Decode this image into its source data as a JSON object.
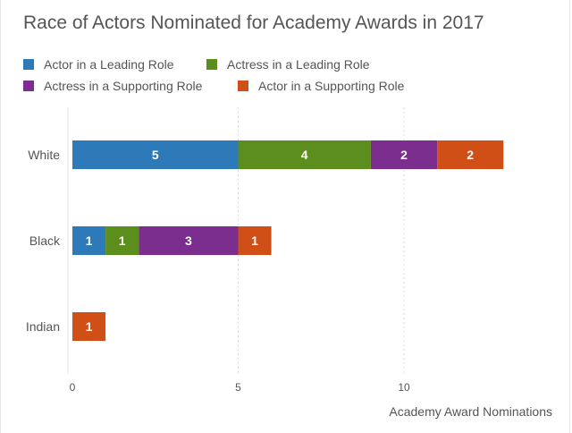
{
  "chart_data": {
    "type": "bar",
    "orientation": "horizontal",
    "stacked": true,
    "title": "Race of Actors Nominated for Academy Awards in 2017",
    "xlabel": "Academy Award Nominations",
    "ylabel": "",
    "categories": [
      "White",
      "Black",
      "Indian"
    ],
    "series": [
      {
        "name": "Actor in a Leading Role",
        "color": "#2e7ab8",
        "values": [
          5,
          1,
          0
        ]
      },
      {
        "name": "Actress in a Leading Role",
        "color": "#5c8e1e",
        "values": [
          4,
          1,
          0
        ]
      },
      {
        "name": "Actress in a Supporting Role",
        "color": "#7b2e8e",
        "values": [
          2,
          3,
          0
        ]
      },
      {
        "name": "Actor in a Supporting Role",
        "color": "#d04f16",
        "values": [
          2,
          1,
          1
        ]
      }
    ],
    "xlim": [
      0,
      14
    ],
    "xticks": [
      0,
      5,
      10
    ],
    "grid": true,
    "legend_position": "top-left"
  }
}
